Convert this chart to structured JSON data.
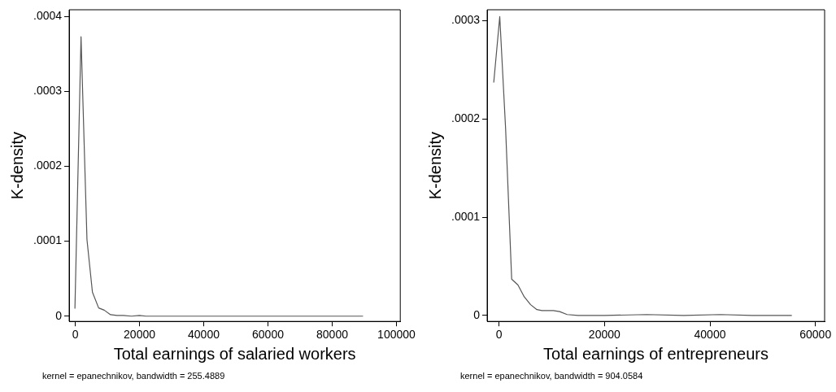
{
  "chart_data": [
    {
      "type": "line",
      "xlabel": "Total earnings of salaried workers",
      "ylabel": "K-density",
      "x": [
        -100,
        1800,
        3650,
        5350,
        7280,
        9030,
        10980,
        13000,
        15000,
        17500,
        20000,
        22000,
        30000,
        40000,
        50000,
        60000,
        70000,
        80000,
        89600
      ],
      "series": [
        {
          "color": "#555555",
          "values": [
            1e-05,
            0.000373,
            0.000102,
            3.2e-05,
            1.1e-05,
            8e-06,
            2e-06,
            1e-06,
            1e-06,
            0,
            1e-06,
            0,
            0,
            0,
            0,
            0,
            0,
            0,
            0
          ]
        }
      ],
      "xlim": [
        -1900,
        101200
      ],
      "xticks": [
        0,
        20000,
        40000,
        60000,
        80000,
        100000
      ],
      "ylim": [
        -7e-06,
        0.000409
      ],
      "yticks": [
        0,
        {
          "value": 0.0001,
          "label": ".0001"
        },
        {
          "value": 0.0002,
          "label": ".0002"
        },
        {
          "value": 0.0003,
          "label": ".0003"
        },
        {
          "value": 0.0004,
          "label": ".0004"
        }
      ],
      "grid": false,
      "legend": false,
      "marker": "none",
      "line_style": "solid",
      "annotations": [
        "kernel = epanechnikov, bandwidth = 255.4889"
      ]
    },
    {
      "type": "line",
      "xlabel": "Total earnings of entrepreneurs",
      "ylabel": "K-density",
      "x": [
        -1000,
        140,
        1250,
        2400,
        3600,
        4780,
        5990,
        7180,
        8140,
        10300,
        11490,
        12920,
        15000,
        20000,
        28000,
        35000,
        42000,
        48000,
        55520
      ],
      "series": [
        {
          "color": "#555555",
          "values": [
            0.000237,
            0.000304,
            0.00019,
            3.7e-05,
            3.1e-05,
            1.9e-05,
            1.1e-05,
            6e-06,
            5e-06,
            5e-06,
            4e-06,
            1e-06,
            0,
            0,
            1e-06,
            0,
            1e-06,
            0,
            0
          ]
        }
      ],
      "xlim": [
        -2250,
        61740
      ],
      "xticks": [
        0,
        20000,
        40000,
        60000
      ],
      "ylim": [
        -6e-06,
        0.000311
      ],
      "yticks": [
        0,
        {
          "value": 0.0001,
          "label": ".0001"
        },
        {
          "value": 0.0002,
          "label": ".0002"
        },
        {
          "value": 0.0003,
          "label": ".0003"
        }
      ],
      "grid": false,
      "legend": false,
      "marker": "none",
      "line_style": "solid",
      "annotations": [
        "kernel = epanechnikov, bandwidth = 904.0584"
      ]
    }
  ]
}
